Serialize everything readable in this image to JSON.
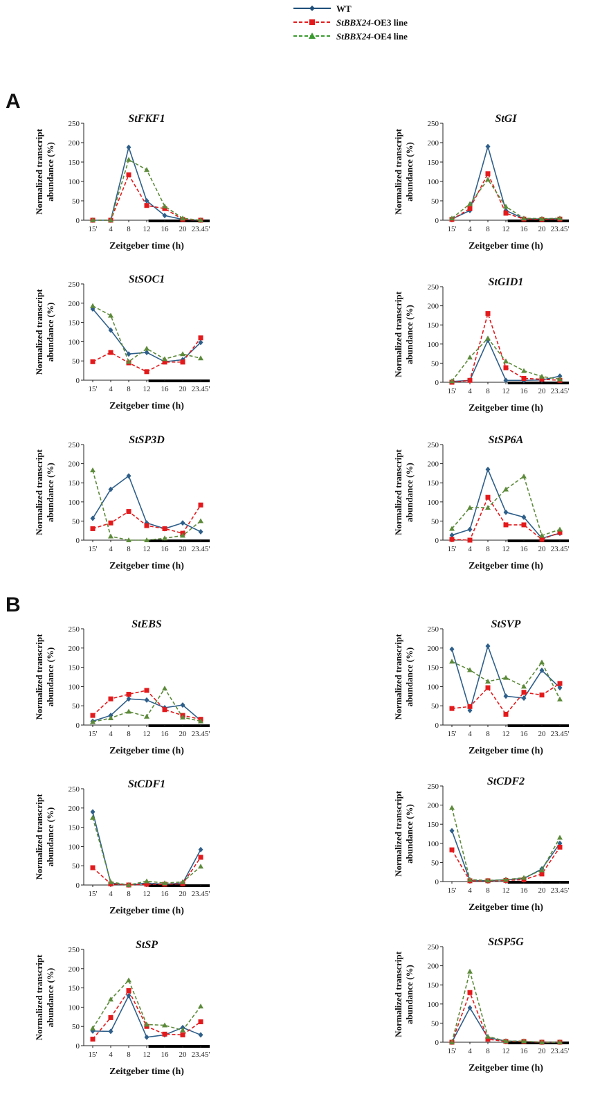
{
  "legend": {
    "items": [
      {
        "name": "WT",
        "italic": "",
        "rest": "WT",
        "color": "#1f4e79",
        "dash": false,
        "marker": "diamond"
      },
      {
        "name": "StBBX24-OE3 line",
        "italic": "StBBX24",
        "rest": "-OE3 line",
        "color": "#e31a1c",
        "dash": true,
        "marker": "square"
      },
      {
        "name": "StBBX24-OE4 line",
        "italic": "StBBX24",
        "rest": "-OE4 line",
        "color": "#3a9a2f",
        "dash": true,
        "marker": "triangle"
      }
    ]
  },
  "panels": {
    "a": "A",
    "b": "B"
  },
  "colors": {
    "wt": "#2e5f8a",
    "oe3": "#e31a1c",
    "oe4": "#5c8a3a",
    "axis": "#222222"
  },
  "chart_data": [
    {
      "type": "line",
      "title": "StFKF1",
      "xlabel": "Zeitgeber time (h)",
      "ylabel": [
        "Normalized transcript",
        "abundance (%)"
      ],
      "categories": [
        "15'",
        "4",
        "8",
        "12",
        "16",
        "20",
        "23.45'"
      ],
      "ylim": [
        0,
        250
      ],
      "yticks": [
        0,
        50,
        100,
        150,
        200,
        250
      ],
      "series": [
        {
          "name": "WT",
          "values": [
            0,
            0,
            188,
            50,
            12,
            2,
            0
          ]
        },
        {
          "name": "StBBX24-OE3 line",
          "values": [
            0,
            0,
            117,
            38,
            30,
            2,
            0
          ]
        },
        {
          "name": "StBBX24-OE4 line",
          "values": [
            0,
            0,
            156,
            130,
            36,
            5,
            0
          ]
        }
      ]
    },
    {
      "type": "line",
      "title": "StGI",
      "xlabel": "Zeitgeber time (h)",
      "ylabel": [
        "Normalized transcript",
        "abundance (%)"
      ],
      "categories": [
        "15'",
        "4",
        "8",
        "12",
        "16",
        "20",
        "23.45'"
      ],
      "ylim": [
        0,
        250
      ],
      "yticks": [
        0,
        50,
        100,
        150,
        200,
        250
      ],
      "series": [
        {
          "name": "WT",
          "values": [
            3,
            25,
            190,
            25,
            4,
            3,
            4
          ]
        },
        {
          "name": "StBBX24-OE3 line",
          "values": [
            2,
            30,
            120,
            18,
            3,
            2,
            3
          ]
        },
        {
          "name": "StBBX24-OE4 line",
          "values": [
            5,
            42,
            105,
            35,
            5,
            4,
            5
          ]
        }
      ]
    },
    {
      "type": "line",
      "title": "StSOC1",
      "xlabel": "Zeitgeber time (h)",
      "ylabel": [
        "Normalized transcript",
        "abundance (%)"
      ],
      "categories": [
        "15'",
        "4",
        "8",
        "12",
        "16",
        "20",
        "23.45'"
      ],
      "ylim": [
        0,
        250
      ],
      "yticks": [
        0,
        50,
        100,
        150,
        200,
        250
      ],
      "series": [
        {
          "name": "WT",
          "values": [
            185,
            130,
            68,
            72,
            48,
            53,
            98
          ]
        },
        {
          "name": "StBBX24-OE3 line",
          "values": [
            48,
            72,
            45,
            22,
            47,
            47,
            110
          ]
        },
        {
          "name": "StBBX24-OE4 line",
          "values": [
            193,
            168,
            48,
            82,
            55,
            68,
            57
          ]
        }
      ]
    },
    {
      "type": "line",
      "title": "StGID1",
      "xlabel": "Zeitgeber time (h)",
      "ylabel": [
        "Normalized transcript",
        "abundance (%)"
      ],
      "categories": [
        "15'",
        "4",
        "8",
        "12",
        "16",
        "20",
        "23.45'"
      ],
      "ylim": [
        0,
        250
      ],
      "yticks": [
        0,
        50,
        100,
        150,
        200,
        250
      ],
      "series": [
        {
          "name": "WT",
          "values": [
            2,
            5,
            110,
            5,
            5,
            6,
            16
          ]
        },
        {
          "name": "StBBX24-OE3 line",
          "values": [
            0,
            5,
            180,
            38,
            10,
            8,
            5
          ]
        },
        {
          "name": "StBBX24-OE4 line",
          "values": [
            3,
            65,
            115,
            55,
            30,
            15,
            8
          ]
        }
      ]
    },
    {
      "type": "line",
      "title": "StSP3D",
      "xlabel": "Zeitgeber time (h)",
      "ylabel": [
        "Normalized transcript",
        "abundance (%)"
      ],
      "categories": [
        "15'",
        "4",
        "8",
        "12",
        "16",
        "20",
        "23.45'"
      ],
      "ylim": [
        0,
        250
      ],
      "yticks": [
        0,
        50,
        100,
        150,
        200,
        250
      ],
      "series": [
        {
          "name": "WT",
          "values": [
            57,
            133,
            168,
            45,
            30,
            45,
            22
          ]
        },
        {
          "name": "StBBX24-OE3 line",
          "values": [
            30,
            45,
            75,
            38,
            30,
            18,
            92
          ]
        },
        {
          "name": "StBBX24-OE4 line",
          "values": [
            183,
            10,
            0,
            0,
            5,
            12,
            50
          ]
        }
      ]
    },
    {
      "type": "line",
      "title": "StSP6A",
      "xlabel": "Zeitgeber time (h)",
      "ylabel": [
        "Normalized transcript",
        "abundance (%)"
      ],
      "categories": [
        "15'",
        "4",
        "8",
        "12",
        "16",
        "20",
        "23.45'"
      ],
      "ylim": [
        0,
        250
      ],
      "yticks": [
        0,
        50,
        100,
        150,
        200,
        250
      ],
      "series": [
        {
          "name": "WT",
          "values": [
            13,
            28,
            185,
            73,
            60,
            5,
            18
          ]
        },
        {
          "name": "StBBX24-OE3 line",
          "values": [
            2,
            0,
            112,
            40,
            40,
            2,
            20
          ]
        },
        {
          "name": "StBBX24-OE4 line",
          "values": [
            30,
            85,
            85,
            133,
            167,
            12,
            28
          ]
        }
      ]
    },
    {
      "type": "line",
      "title": "StEBS",
      "xlabel": "Zeitgeber time (h)",
      "ylabel": [
        "Normalized transcript",
        "abundance (%)"
      ],
      "categories": [
        "15'",
        "4",
        "8",
        "12",
        "16",
        "20",
        "23.45'"
      ],
      "ylim": [
        0,
        250
      ],
      "yticks": [
        0,
        50,
        100,
        150,
        200,
        250
      ],
      "series": [
        {
          "name": "WT",
          "values": [
            10,
            25,
            68,
            65,
            45,
            52,
            12
          ]
        },
        {
          "name": "StBBX24-OE3 line",
          "values": [
            25,
            68,
            80,
            90,
            40,
            25,
            15
          ]
        },
        {
          "name": "StBBX24-OE4 line",
          "values": [
            8,
            18,
            35,
            22,
            95,
            20,
            10
          ]
        }
      ]
    },
    {
      "type": "line",
      "title": "StSVP",
      "xlabel": "Zeitgeber time (h)",
      "ylabel": [
        "Normalized transcript",
        "abundance (%)"
      ],
      "categories": [
        "15'",
        "4",
        "8",
        "12",
        "16",
        "20",
        "23.45'"
      ],
      "ylim": [
        0,
        250
      ],
      "yticks": [
        0,
        50,
        100,
        150,
        200,
        250
      ],
      "series": [
        {
          "name": "WT",
          "values": [
            197,
            38,
            205,
            75,
            70,
            142,
            97
          ]
        },
        {
          "name": "StBBX24-OE3 line",
          "values": [
            43,
            48,
            97,
            28,
            85,
            78,
            108
          ]
        },
        {
          "name": "StBBX24-OE4 line",
          "values": [
            165,
            143,
            113,
            123,
            100,
            163,
            67
          ]
        }
      ]
    },
    {
      "type": "line",
      "title": "StCDF1",
      "xlabel": "Zeitgeber time (h)",
      "ylabel": [
        "Normalized transcript",
        "abundance (%)"
      ],
      "categories": [
        "15'",
        "4",
        "8",
        "12",
        "16",
        "20",
        "23.45'"
      ],
      "ylim": [
        0,
        250
      ],
      "yticks": [
        0,
        50,
        100,
        150,
        200,
        250
      ],
      "series": [
        {
          "name": "WT",
          "values": [
            190,
            5,
            0,
            5,
            2,
            5,
            92
          ]
        },
        {
          "name": "StBBX24-OE3 line",
          "values": [
            45,
            3,
            0,
            2,
            2,
            3,
            72
          ]
        },
        {
          "name": "StBBX24-OE4 line",
          "values": [
            175,
            8,
            0,
            10,
            5,
            8,
            48
          ]
        }
      ]
    },
    {
      "type": "line",
      "title": "StCDF2",
      "xlabel": "Zeitgeber time (h)",
      "ylabel": [
        "Normalized transcript",
        "abundance (%)"
      ],
      "categories": [
        "15'",
        "4",
        "8",
        "12",
        "16",
        "20",
        "23.45'"
      ],
      "ylim": [
        0,
        250
      ],
      "yticks": [
        0,
        50,
        100,
        150,
        200,
        250
      ],
      "series": [
        {
          "name": "WT",
          "values": [
            133,
            3,
            2,
            5,
            8,
            33,
            100
          ]
        },
        {
          "name": "StBBX24-OE3 line",
          "values": [
            83,
            2,
            2,
            3,
            5,
            20,
            90
          ]
        },
        {
          "name": "StBBX24-OE4 line",
          "values": [
            193,
            5,
            3,
            5,
            10,
            30,
            115
          ]
        }
      ]
    },
    {
      "type": "line",
      "title": "StSP",
      "xlabel": "Zeitgeber time (h)",
      "ylabel": [
        "Normalized transcript",
        "abundance (%)"
      ],
      "categories": [
        "15'",
        "4",
        "8",
        "12",
        "16",
        "20",
        "23.45'"
      ],
      "ylim": [
        0,
        250
      ],
      "yticks": [
        0,
        50,
        100,
        150,
        200,
        250
      ],
      "series": [
        {
          "name": "WT",
          "values": [
            38,
            37,
            130,
            22,
            28,
            47,
            28
          ]
        },
        {
          "name": "StBBX24-OE3 line",
          "values": [
            17,
            73,
            143,
            50,
            30,
            28,
            62
          ]
        },
        {
          "name": "StBBX24-OE4 line",
          "values": [
            45,
            120,
            170,
            55,
            53,
            40,
            102
          ]
        }
      ]
    },
    {
      "type": "line",
      "title": "StSP5G",
      "xlabel": "Zeitgeber time (h)",
      "ylabel": [
        "Normalized transcript",
        "abundance (%)"
      ],
      "categories": [
        "15'",
        "4",
        "8",
        "12",
        "16",
        "20",
        "23.45'"
      ],
      "ylim": [
        0,
        250
      ],
      "yticks": [
        0,
        50,
        100,
        150,
        200,
        250
      ],
      "series": [
        {
          "name": "WT",
          "values": [
            0,
            90,
            12,
            3,
            2,
            0,
            0
          ]
        },
        {
          "name": "StBBX24-OE3 line",
          "values": [
            0,
            130,
            8,
            2,
            2,
            0,
            0
          ]
        },
        {
          "name": "StBBX24-OE4 line",
          "values": [
            0,
            185,
            15,
            3,
            3,
            0,
            0
          ]
        }
      ]
    }
  ]
}
